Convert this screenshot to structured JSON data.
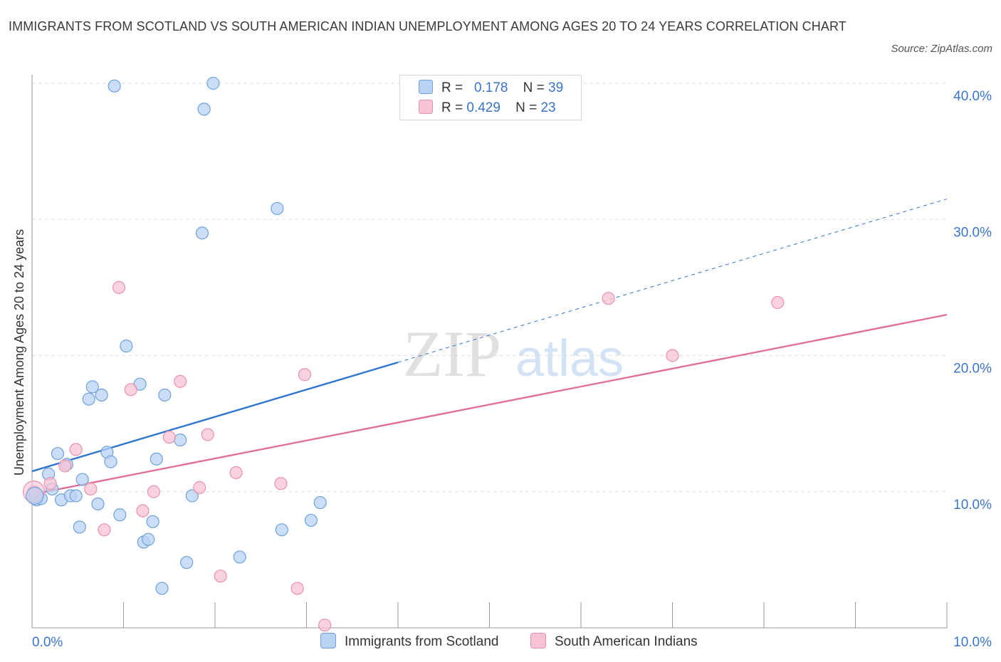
{
  "title": "IMMIGRANTS FROM SCOTLAND VS SOUTH AMERICAN INDIAN UNEMPLOYMENT AMONG AGES 20 TO 24 YEARS CORRELATION CHART",
  "source": "Source: ZipAtlas.com",
  "watermark": {
    "zip": "ZIP",
    "atlas": "atlas"
  },
  "colors": {
    "blue_fill": "#b9d3f4",
    "blue_stroke": "#6fa1dc",
    "blue_line": "#2f76cf",
    "pink_fill": "#f8c3d3",
    "pink_stroke": "#e891ad",
    "pink_line": "#e0709a",
    "axis_label": "#3a74c9",
    "grid": "#dddddd"
  },
  "legend": {
    "r_label": "R =",
    "n_label": "N =",
    "series": [
      {
        "name": "Immigrants from Scotland",
        "r": "0.178",
        "n": "39"
      },
      {
        "name": "South American Indians",
        "r": "0.429",
        "n": "23"
      }
    ]
  },
  "chart_data": {
    "type": "scatter",
    "title": "IMMIGRANTS FROM SCOTLAND VS SOUTH AMERICAN INDIAN UNEMPLOYMENT AMONG AGES 20 TO 24 YEARS CORRELATION CHART",
    "xlabel": "",
    "ylabel": "Unemployment Among Ages 20 to 24 years",
    "xlim": [
      0,
      10
    ],
    "ylim": [
      0,
      40
    ],
    "x_tick_labels": [
      "0.0%",
      "10.0%"
    ],
    "y_ticks": [
      10,
      20,
      30,
      40
    ],
    "y_tick_labels": [
      "10.0%",
      "20.0%",
      "30.0%",
      "40.0%"
    ],
    "grid": true,
    "series": [
      {
        "name": "Immigrants from Scotland",
        "color": "blue",
        "points": [
          [
            0.03,
            9.7
          ],
          [
            0.05,
            9.4
          ],
          [
            0.1,
            9.5
          ],
          [
            0.18,
            11.3
          ],
          [
            0.22,
            10.2
          ],
          [
            0.28,
            12.8
          ],
          [
            0.32,
            9.4
          ],
          [
            0.38,
            12.0
          ],
          [
            0.42,
            9.7
          ],
          [
            0.48,
            9.7
          ],
          [
            0.52,
            7.4
          ],
          [
            0.55,
            10.9
          ],
          [
            0.62,
            16.8
          ],
          [
            0.66,
            17.7
          ],
          [
            0.72,
            9.1
          ],
          [
            0.76,
            17.1
          ],
          [
            0.82,
            12.9
          ],
          [
            0.86,
            12.2
          ],
          [
            0.9,
            39.8
          ],
          [
            0.96,
            8.3
          ],
          [
            1.03,
            20.7
          ],
          [
            1.18,
            17.9
          ],
          [
            1.22,
            6.3
          ],
          [
            1.27,
            6.5
          ],
          [
            1.32,
            7.8
          ],
          [
            1.36,
            12.4
          ],
          [
            1.42,
            2.9
          ],
          [
            1.45,
            17.1
          ],
          [
            1.62,
            13.8
          ],
          [
            1.69,
            4.8
          ],
          [
            1.75,
            9.7
          ],
          [
            1.86,
            29.0
          ],
          [
            1.88,
            38.1
          ],
          [
            1.98,
            40.0
          ],
          [
            2.27,
            5.2
          ],
          [
            2.68,
            30.8
          ],
          [
            2.73,
            7.2
          ],
          [
            3.05,
            7.9
          ],
          [
            3.15,
            9.2
          ]
        ],
        "trend": {
          "x0": 0,
          "y0": 11.5,
          "x1": 4.0,
          "y1": 19.5,
          "dashed_extension_to_x": 10,
          "dashed_extension_y": 31.5
        }
      },
      {
        "name": "South American Indians",
        "color": "pink",
        "points": [
          [
            0.02,
            10.0
          ],
          [
            0.2,
            10.6
          ],
          [
            0.36,
            11.9
          ],
          [
            0.48,
            13.1
          ],
          [
            0.64,
            10.2
          ],
          [
            0.79,
            7.2
          ],
          [
            0.95,
            25.0
          ],
          [
            1.08,
            17.5
          ],
          [
            1.21,
            8.6
          ],
          [
            1.33,
            10.0
          ],
          [
            1.5,
            14.0
          ],
          [
            1.62,
            18.1
          ],
          [
            1.83,
            10.3
          ],
          [
            1.92,
            14.2
          ],
          [
            2.06,
            3.8
          ],
          [
            2.23,
            11.4
          ],
          [
            2.72,
            10.6
          ],
          [
            2.9,
            2.9
          ],
          [
            2.98,
            18.6
          ],
          [
            3.2,
            0.2
          ],
          [
            6.3,
            24.2
          ],
          [
            7.0,
            20.0
          ],
          [
            8.15,
            23.9
          ]
        ],
        "trend": {
          "x0": 0,
          "y0": 9.8,
          "x1": 10,
          "y1": 23.0
        }
      }
    ]
  }
}
